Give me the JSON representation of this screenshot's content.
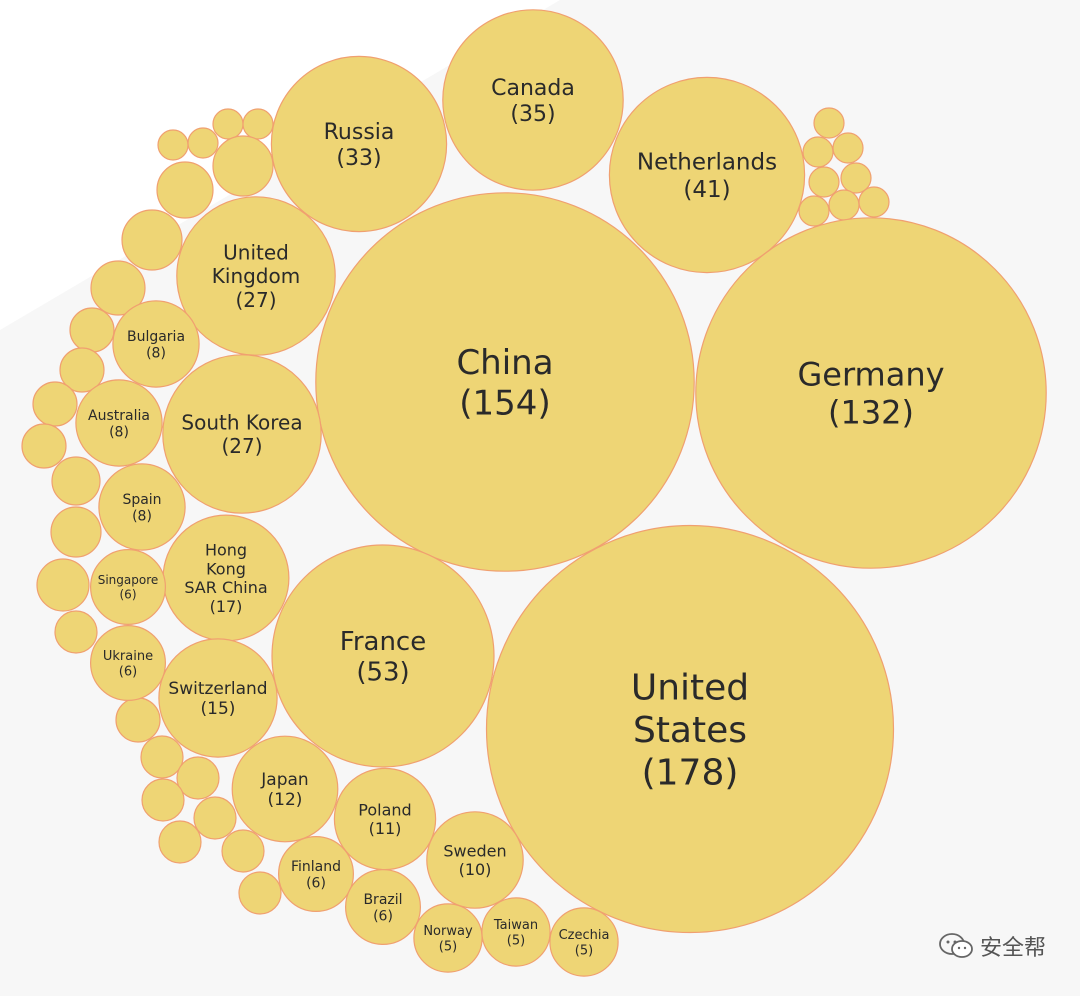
{
  "colors": {
    "bubble_fill": "#eed575",
    "bubble_stroke": "#f0a070",
    "text": "#2a2a2a"
  },
  "watermark": {
    "text": "安全帮",
    "icon": "wechat-icon"
  },
  "chart_data": {
    "type": "bubble",
    "title": "",
    "items": [
      {
        "label": "United States",
        "value": 178
      },
      {
        "label": "China",
        "value": 154
      },
      {
        "label": "Germany",
        "value": 132
      },
      {
        "label": "France",
        "value": 53
      },
      {
        "label": "Netherlands",
        "value": 41
      },
      {
        "label": "Canada",
        "value": 35
      },
      {
        "label": "Russia",
        "value": 33
      },
      {
        "label": "United Kingdom",
        "value": 27
      },
      {
        "label": "South Korea",
        "value": 27
      },
      {
        "label": "Hong Kong SAR China",
        "value": 17
      },
      {
        "label": "Switzerland",
        "value": 15
      },
      {
        "label": "Japan",
        "value": 12
      },
      {
        "label": "Poland",
        "value": 11
      },
      {
        "label": "Sweden",
        "value": 10
      },
      {
        "label": "Bulgaria",
        "value": 8
      },
      {
        "label": "Australia",
        "value": 8
      },
      {
        "label": "Spain",
        "value": 8
      },
      {
        "label": "Singapore",
        "value": 6
      },
      {
        "label": "Ukraine",
        "value": 6
      },
      {
        "label": "Finland",
        "value": 6
      },
      {
        "label": "Brazil",
        "value": 6
      },
      {
        "label": "Norway",
        "value": 5
      },
      {
        "label": "Taiwan",
        "value": 5
      },
      {
        "label": "Czechia",
        "value": 5
      }
    ]
  }
}
